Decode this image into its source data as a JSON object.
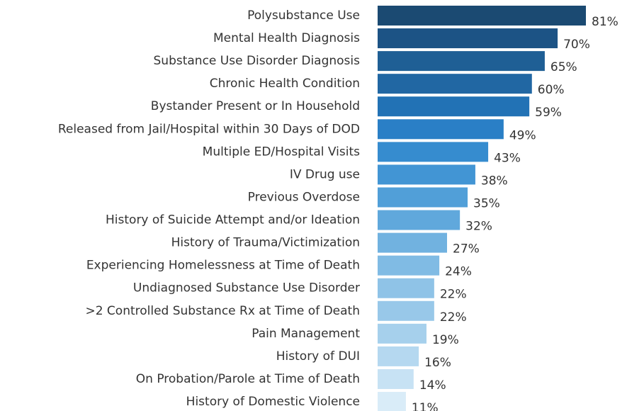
{
  "chart_data": {
    "type": "barh",
    "categories": [
      "Polysubstance Use",
      "Mental Health Diagnosis",
      "Substance Use Disorder Diagnosis",
      "Chronic Health Condition",
      "Bystander Present or In Household",
      "Released from Jail/Hospital within 30 Days of DOD",
      "Multiple ED/Hospital Visits",
      "IV Drug use",
      "Previous Overdose",
      "History of Suicide Attempt and/or Ideation",
      "History of Trauma/Victimization",
      "Experiencing Homelessness at Time of Death",
      "Undiagnosed Substance Use Disorder",
      ">2 Controlled Substance Rx at Time of Death",
      "Pain Management",
      "History of DUI",
      "On Probation/Parole at Time of Death",
      "History of Domestic Violence"
    ],
    "values": [
      81,
      70,
      65,
      60,
      59,
      49,
      43,
      38,
      35,
      32,
      27,
      24,
      22,
      22,
      19,
      16,
      14,
      11
    ],
    "value_labels": [
      "81%",
      "70%",
      "65%",
      "60%",
      "59%",
      "49%",
      "43%",
      "38%",
      "35%",
      "32%",
      "27%",
      "24%",
      "22%",
      "22%",
      "19%",
      "16%",
      "14%",
      "11%"
    ],
    "colors": [
      "#1b4a72",
      "#1c5385",
      "#1f5f95",
      "#2167a3",
      "#2272b5",
      "#2a7fc6",
      "#368ccf",
      "#4295d4",
      "#519fd8",
      "#60a8dc",
      "#71b2e0",
      "#80bbe4",
      "#8fc3e7",
      "#98c8e9",
      "#a6d0ec",
      "#b5d8f0",
      "#c7e2f4",
      "#d9ecf8"
    ]
  }
}
